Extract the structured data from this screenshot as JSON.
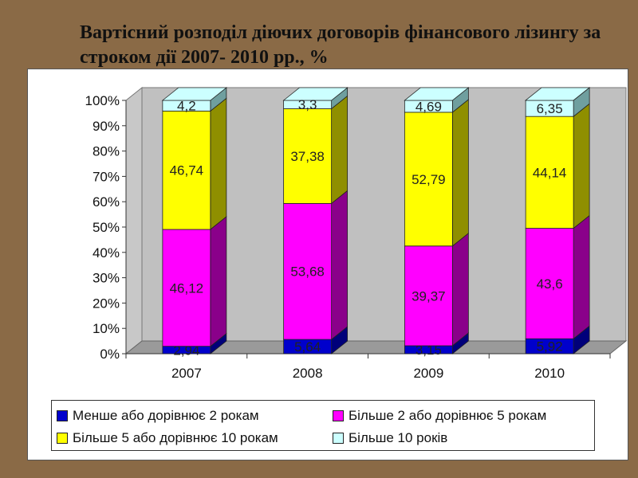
{
  "title": "Вартісний розподіл діючих договорів фінансового лізингу за строком дії 2007- 2010 рр., %",
  "chart_data": {
    "type": "bar",
    "stacked": true,
    "three_d": true,
    "categories": [
      "2007",
      "2008",
      "2009",
      "2010"
    ],
    "series": [
      {
        "name": "Менше або дорівнює 2 рокам",
        "color": "#0000cc",
        "side_color": "#00007a",
        "values": [
          2.94,
          5.64,
          3.15,
          5.92
        ],
        "labels": [
          "2,94",
          "5,64",
          "3,15",
          "5,92"
        ]
      },
      {
        "name": "Більше 2 або дорівнює 5 рокам",
        "color": "#ff00ff",
        "side_color": "#8a008a",
        "values": [
          46.12,
          53.68,
          39.37,
          43.6
        ],
        "labels": [
          "46,12",
          "53,68",
          "39,37",
          "43,6"
        ]
      },
      {
        "name": "Більше 5 або дорівнює 10 рокам",
        "color": "#ffff00",
        "side_color": "#8f8f00",
        "values": [
          46.74,
          37.38,
          52.79,
          44.14
        ],
        "labels": [
          "46,74",
          "37,38",
          "52,79",
          "44,14"
        ]
      },
      {
        "name": "Більше 10 років",
        "color": "#ccffff",
        "side_color": "#6f9f9f",
        "values": [
          4.2,
          3.3,
          4.69,
          6.35
        ],
        "labels": [
          "4,2",
          "3,3",
          "4,69",
          "6,35"
        ]
      }
    ],
    "y_ticks": [
      "0%",
      "10%",
      "20%",
      "30%",
      "40%",
      "50%",
      "60%",
      "70%",
      "80%",
      "90%",
      "100%"
    ],
    "ylim": [
      0,
      100
    ],
    "grid": false,
    "legend_position": "bottom"
  }
}
